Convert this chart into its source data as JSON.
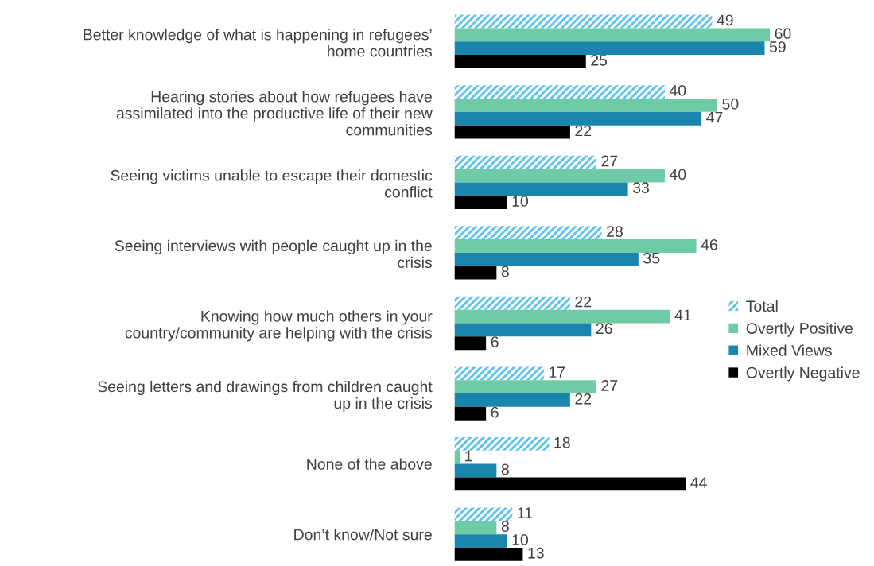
{
  "chart_data": {
    "type": "bar",
    "orientation": "horizontal",
    "data_labels": true,
    "legend": "right",
    "grid": false,
    "categories": [
      "Better knowledge of what is happening in refugees’\nhome countries",
      "Hearing stories about how refugees have\nassimilated into the productive life of their new\ncommunities",
      "Seeing victims unable to escape their domestic\nconflict",
      "Seeing interviews with people caught up in the\ncrisis",
      "Knowing how much others in your\ncountry/community are helping with the crisis",
      "Seeing letters and drawings from children caught\nup in the crisis",
      "None of the above",
      "Don’t know/Not sure"
    ],
    "series": [
      {
        "name": "Total",
        "color": "#5bc3ef",
        "values": [
          49,
          40,
          27,
          28,
          22,
          17,
          18,
          11
        ]
      },
      {
        "name": "Overtly Positive",
        "color": "#6fcba6",
        "values": [
          60,
          50,
          40,
          46,
          41,
          27,
          1,
          8
        ]
      },
      {
        "name": "Mixed Views",
        "color": "#1a86ad",
        "values": [
          59,
          47,
          33,
          35,
          26,
          22,
          8,
          10
        ]
      },
      {
        "name": "Overtly Negative",
        "color": "#000000",
        "values": [
          25,
          22,
          10,
          8,
          6,
          6,
          44,
          13
        ]
      }
    ]
  }
}
